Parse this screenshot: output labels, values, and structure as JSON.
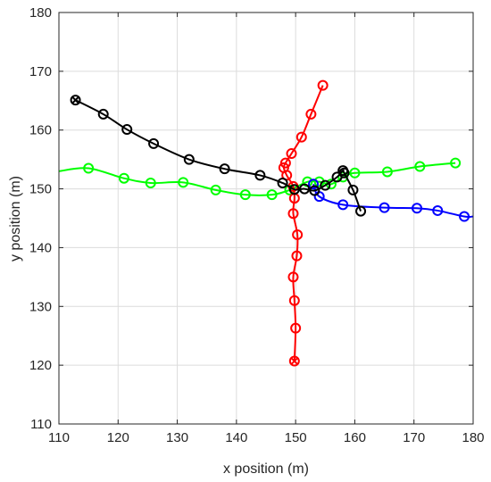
{
  "chart_data": {
    "type": "line",
    "title": "",
    "xlabel": "x position (m)",
    "ylabel": "y position (m)",
    "xlim": [
      110,
      180
    ],
    "ylim": [
      110,
      180
    ],
    "xticks": [
      110,
      120,
      130,
      140,
      150,
      160,
      170,
      180
    ],
    "yticks": [
      110,
      120,
      130,
      140,
      150,
      160,
      170,
      180
    ],
    "grid": true,
    "legend": "none",
    "series": [
      {
        "color": "#00ff00",
        "marker": "circle",
        "points": [
          [
            110,
            153
          ],
          [
            115,
            153.5
          ],
          [
            121,
            151.8
          ],
          [
            125.5,
            151
          ],
          [
            131,
            151.1
          ],
          [
            136.5,
            149.8
          ],
          [
            141.5,
            149
          ],
          [
            146,
            149
          ],
          [
            149,
            149.8
          ],
          [
            152,
            151.2
          ],
          [
            154,
            151.2
          ],
          [
            156,
            150.8
          ],
          [
            158,
            152
          ],
          [
            160,
            152.7
          ],
          [
            165.5,
            152.9
          ],
          [
            171,
            153.8
          ],
          [
            177,
            154.4
          ]
        ]
      },
      {
        "color": "#0000ff",
        "marker": "circle",
        "points": [
          [
            153,
            150.8
          ],
          [
            154,
            148.7
          ],
          [
            158,
            147.3
          ],
          [
            165,
            146.8
          ],
          [
            170.5,
            146.7
          ],
          [
            174,
            146.3
          ],
          [
            178.5,
            145.3
          ],
          [
            180,
            145.3
          ]
        ]
      },
      {
        "color": "#ff0000",
        "marker": "circle",
        "points": [
          [
            149.8,
            120.7
          ],
          [
            150,
            126.3
          ],
          [
            149.8,
            131
          ],
          [
            149.6,
            135
          ],
          [
            150.2,
            138.6
          ],
          [
            150.3,
            142.2
          ],
          [
            149.6,
            145.8
          ],
          [
            149.8,
            148.4
          ],
          [
            149.6,
            150.4
          ],
          [
            148.5,
            152.3
          ],
          [
            148,
            153.6
          ],
          [
            148.3,
            154.4
          ],
          [
            149.3,
            156
          ],
          [
            151,
            158.8
          ],
          [
            152.6,
            162.7
          ],
          [
            154.6,
            167.6
          ]
        ]
      },
      {
        "color": "#000000",
        "marker": "circle",
        "points": [
          [
            112.8,
            165.1
          ],
          [
            117.5,
            162.7
          ],
          [
            121.5,
            160.1
          ],
          [
            126,
            157.7
          ],
          [
            132,
            155
          ],
          [
            138,
            153.4
          ],
          [
            144,
            152.3
          ],
          [
            147.8,
            151
          ],
          [
            149.8,
            149.9
          ],
          [
            151.5,
            150
          ],
          [
            153.2,
            149.7
          ],
          [
            155,
            150.6
          ],
          [
            157,
            152
          ],
          [
            158,
            153.1
          ],
          [
            158.2,
            152.7
          ],
          [
            159.7,
            149.8
          ],
          [
            161,
            146.2
          ]
        ]
      }
    ],
    "start_markers": [
      {
        "color": "#000000",
        "point": [
          112.8,
          165.1
        ]
      },
      {
        "color": "#ff0000",
        "point": [
          149.8,
          120.7
        ]
      }
    ]
  }
}
